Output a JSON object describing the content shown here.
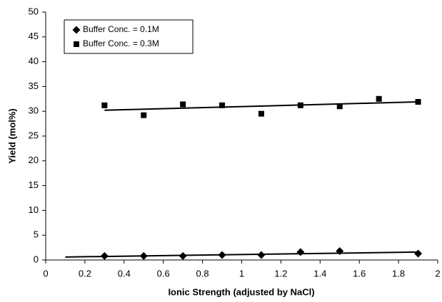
{
  "chart_data": {
    "type": "scatter",
    "x_label": "Ionic Strength (adjusted by NaCl)",
    "y_label": "Yield (mol%)",
    "xlim": [
      0,
      2
    ],
    "xticks": [
      0,
      0.2,
      0.4,
      0.6,
      0.8,
      1,
      1.2,
      1.4,
      1.6,
      1.8,
      2
    ],
    "ylim": [
      0,
      50
    ],
    "yticks": [
      0,
      5,
      10,
      15,
      20,
      25,
      30,
      35,
      40,
      45,
      50
    ],
    "grid": false,
    "legend": "upper left",
    "series": [
      {
        "name": "Buffer Conc. = 0.1M",
        "color": "#000000",
        "marker": "diamond",
        "x": [
          0.3,
          0.5,
          0.7,
          0.9,
          1.1,
          1.3,
          1.5,
          1.9
        ],
        "values": [
          0.8,
          0.8,
          0.8,
          1.0,
          1.0,
          1.6,
          1.8,
          1.3
        ],
        "trendline": {
          "x": [
            0.1,
            1.9
          ],
          "values": [
            0.6,
            1.6
          ]
        }
      },
      {
        "name": "Buffer Conc. = 0.3M",
        "color": "#000000",
        "marker": "square",
        "x": [
          0.3,
          0.5,
          0.7,
          0.9,
          1.1,
          1.3,
          1.5,
          1.7,
          1.9
        ],
        "values": [
          31.2,
          29.2,
          31.4,
          31.2,
          29.5,
          31.2,
          31.0,
          32.5,
          31.9
        ],
        "trendline": {
          "x": [
            0.3,
            1.9
          ],
          "values": [
            30.2,
            31.9
          ]
        }
      }
    ]
  }
}
